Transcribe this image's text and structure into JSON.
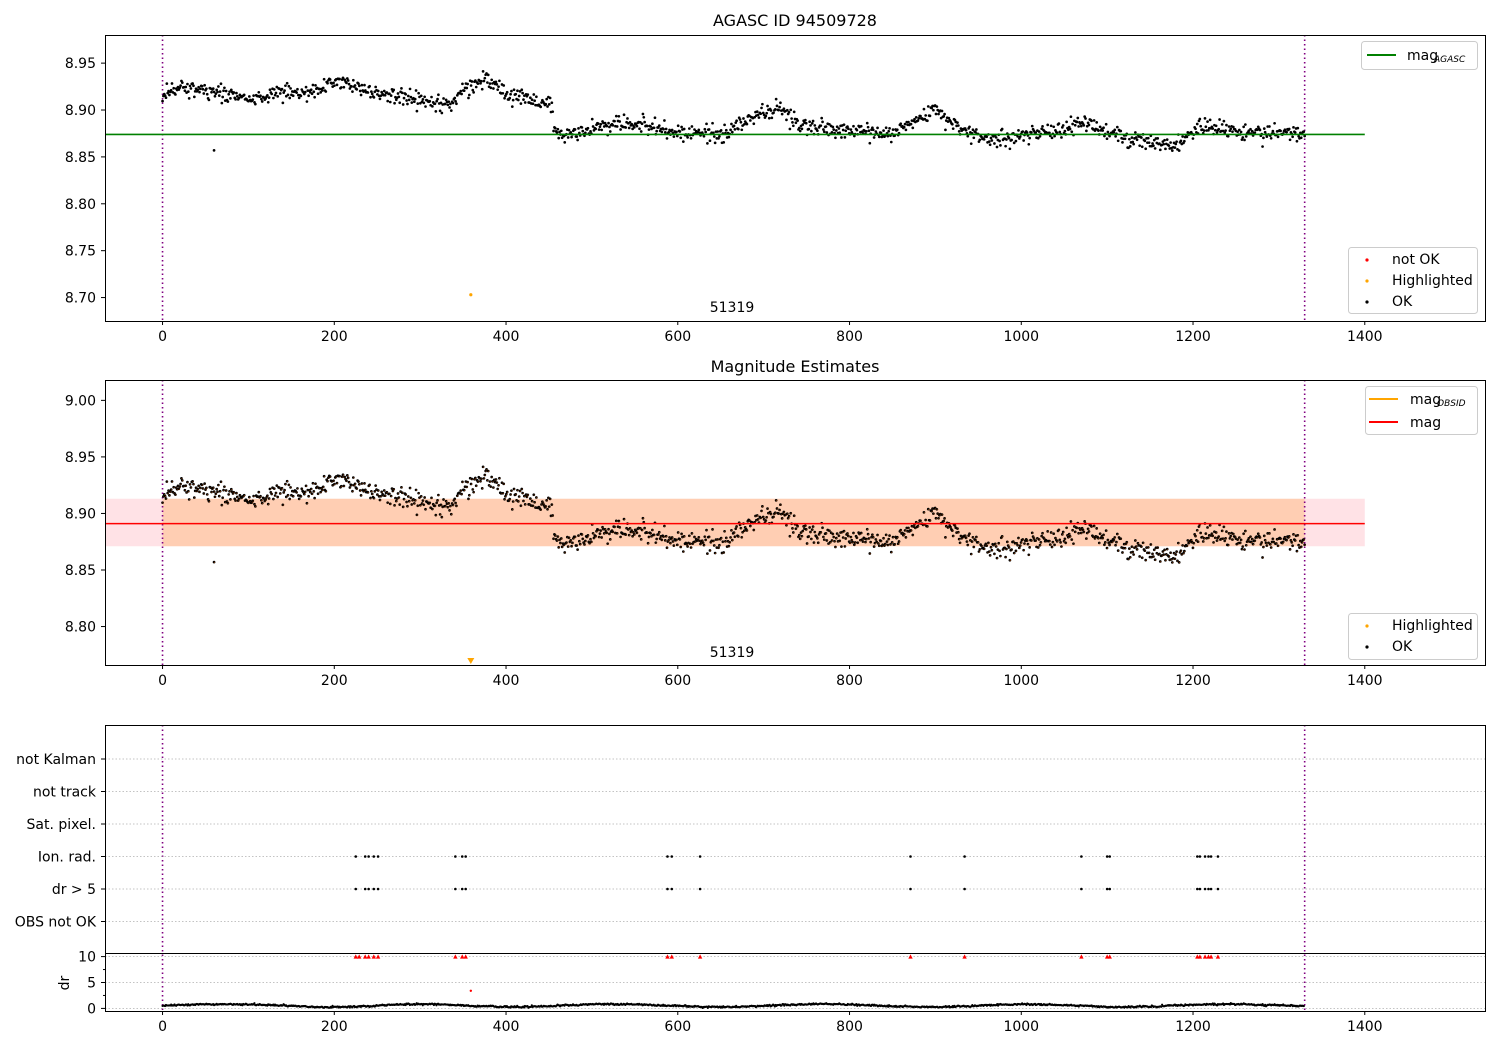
{
  "chart_data": [
    {
      "type": "scatter",
      "title": "AGASC ID 94509728",
      "xlim": [
        -67,
        1540
      ],
      "ylim": [
        8.675,
        8.98
      ],
      "xticks": [
        0,
        200,
        400,
        600,
        800,
        1000,
        1200,
        1400
      ],
      "yticks": [
        8.7,
        8.75,
        8.8,
        8.85,
        8.9,
        8.95
      ],
      "ytick_labels": [
        "8.70",
        "8.75",
        "8.80",
        "8.85",
        "8.90",
        "8.95"
      ],
      "vlines": [
        0,
        1330
      ],
      "hline": {
        "name": "mag_AGASC",
        "y": 8.874,
        "x_end": 1400,
        "color": "#008000"
      },
      "annotation": {
        "text": "51319",
        "x": 665
      },
      "legends": [
        {
          "position": "top-right",
          "entries": [
            {
              "label": "mag",
              "sub": "AGASC",
              "kind": "line",
              "color": "#008000"
            }
          ]
        },
        {
          "position": "bottom-right",
          "entries": [
            {
              "label": "not OK",
              "kind": "dot",
              "color": "#ff0000"
            },
            {
              "label": "Highlighted",
              "kind": "dot",
              "color": "#ffa500"
            },
            {
              "label": "OK",
              "kind": "dot",
              "color": "#000000"
            }
          ]
        }
      ],
      "highlighted_points": [
        {
          "x": 359,
          "y": 8.703
        }
      ],
      "ok_series_trend": {
        "x_range": [
          0,
          1330
        ],
        "n": 1330,
        "segments": [
          {
            "x": [
              0,
              15,
              40,
              100,
              180,
              200,
              250,
              330,
              350,
              375,
              400,
              440,
              455
            ],
            "y": [
              8.913,
              8.925,
              8.922,
              8.912,
              8.922,
              8.932,
              8.918,
              8.905,
              8.918,
              8.933,
              8.918,
              8.908,
              8.905
            ]
          },
          {
            "x": [
              455,
              470,
              530,
              600,
              650,
              700,
              715,
              740,
              800,
              850,
              880,
              900,
              930,
              960,
              1000,
              1050,
              1075,
              1100,
              1150,
              1180,
              1215,
              1230,
              1280,
              1330
            ],
            "y": [
              8.878,
              8.875,
              8.887,
              8.877,
              8.875,
              8.897,
              8.905,
              8.884,
              8.878,
              8.874,
              8.892,
              8.898,
              8.878,
              8.868,
              8.872,
              8.88,
              8.888,
              8.875,
              8.865,
              8.86,
              8.885,
              8.88,
              8.876,
              8.875
            ]
          }
        ],
        "noise": 0.008
      },
      "outlier_points": [
        {
          "x": 60,
          "y": 8.857
        }
      ]
    },
    {
      "type": "scatter",
      "title": "Magnitude Estimates",
      "xlim": [
        -67,
        1540
      ],
      "ylim": [
        8.766,
        9.018
      ],
      "xticks": [
        0,
        200,
        400,
        600,
        800,
        1000,
        1200,
        1400
      ],
      "yticks": [
        8.8,
        8.85,
        8.9,
        8.95,
        9.0
      ],
      "ytick_labels": [
        "8.80",
        "8.85",
        "8.90",
        "8.95",
        "9.00"
      ],
      "vlines": [
        0,
        1330
      ],
      "hline": {
        "name": "mag",
        "y": 8.891,
        "x_end": 1400,
        "color": "#ff0000"
      },
      "bands": [
        {
          "x": [
            -67,
            1400
          ],
          "y": [
            8.871,
            8.913
          ],
          "color": "#ffb6c1",
          "opacity": 0.4
        },
        {
          "x": [
            0,
            1330
          ],
          "y": [
            8.871,
            8.913
          ],
          "color": "#ffa040",
          "opacity": 0.3
        }
      ],
      "annotation": {
        "text": "51319",
        "x": 665
      },
      "legends": [
        {
          "position": "top-right",
          "entries": [
            {
              "label": "mag",
              "sub": "OBSID",
              "kind": "line",
              "color": "#ffa500"
            },
            {
              "label": "mag",
              "sub": "",
              "kind": "line",
              "color": "#ff0000"
            }
          ]
        },
        {
          "position": "bottom-right",
          "entries": [
            {
              "label": "Highlighted",
              "kind": "dot",
              "color": "#ffa500"
            },
            {
              "label": "OK",
              "kind": "dot",
              "color": "#000000"
            }
          ]
        }
      ],
      "highlighted_marker": {
        "x": 359,
        "shape": "triangle-down"
      },
      "outlier_points": [
        {
          "x": 60,
          "y": 8.857
        }
      ]
    },
    {
      "type": "scatter",
      "title": "",
      "xlim": [
        -67,
        1540
      ],
      "xticks": [
        0,
        200,
        400,
        600,
        800,
        1000,
        1200,
        1400
      ],
      "vlines": [
        0,
        1330
      ],
      "flag_rows": [
        "not Kalman",
        "not track",
        "Sat. pixel.",
        "Ion. rad.",
        "dr > 5",
        "OBS not OK"
      ],
      "flag_points": {
        "Ion. rad.": [
          225,
          236,
          240,
          246,
          251,
          341,
          349,
          353,
          588,
          593,
          626,
          871,
          934,
          1070,
          1100,
          1103,
          1205,
          1208,
          1214,
          1218,
          1221,
          1229
        ],
        "dr > 5": [
          225,
          236,
          240,
          246,
          251,
          341,
          349,
          353,
          588,
          593,
          626,
          871,
          934,
          1070,
          1100,
          1103,
          1205,
          1208,
          1214,
          1218,
          1221,
          1229
        ]
      },
      "dr_panel": {
        "ylabel": "dr",
        "ylim": [
          -0.5,
          10.5
        ],
        "yticks": [
          0,
          5,
          10
        ],
        "ytick_labels": [
          "0",
          "5",
          "10"
        ],
        "clipped_points_x": [
          225,
          229,
          236,
          240,
          246,
          251,
          341,
          349,
          353,
          588,
          593,
          626,
          871,
          934,
          1070,
          1100,
          1103,
          1205,
          1208,
          1214,
          1218,
          1221,
          1229
        ],
        "red_point": {
          "x": 359,
          "y": 3.4
        },
        "typical_range": [
          0.1,
          1.2
        ]
      }
    }
  ]
}
